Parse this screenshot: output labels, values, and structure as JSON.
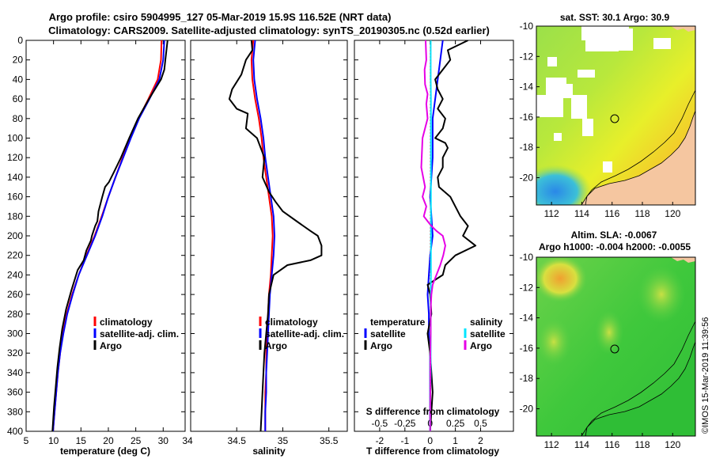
{
  "title": {
    "line1": "Argo profile: csiro 5904995_127 05-Mar-2019 15.9S 116.52E (NRT data)",
    "line2": "Climatology: CARS2009. Satellite-adjusted climatology: synTS_20190305.nc (0.52d earlier)"
  },
  "credit": "©IMOS 15-Mar-2019 11:39:56",
  "colors": {
    "climatology": "#ff0000",
    "satellite": "#0000ff",
    "argo": "#000000",
    "sal_satellite": "#00e5ff",
    "sal_argo": "#e600e6"
  },
  "chart_data": [
    {
      "id": "temperature",
      "type": "line",
      "xlabel": "temperature (deg C)",
      "ylabel": "",
      "xlim": [
        5,
        34
      ],
      "ylim": [
        400,
        0
      ],
      "xticks": [
        "5",
        "10",
        "15",
        "20",
        "25",
        "30"
      ],
      "yticks": [
        "0",
        "20",
        "40",
        "60",
        "80",
        "100",
        "120",
        "140",
        "160",
        "180",
        "200",
        "220",
        "240",
        "260",
        "280",
        "300",
        "320",
        "340",
        "360",
        "380",
        "400"
      ],
      "legend": [
        "climatology",
        "satellite-adj. clim.",
        "Argo"
      ],
      "series": [
        {
          "name": "climatology",
          "color": "#ff0000",
          "x": [
            29.7,
            29.6,
            29.0,
            27.3,
            25.5,
            24.0,
            22.6,
            21.3,
            20.0,
            18.8,
            17.5,
            16.0,
            14.6,
            13.4,
            12.4,
            11.7,
            11.2,
            10.8,
            10.5,
            10.2,
            9.9
          ],
          "y": [
            0,
            20,
            40,
            60,
            80,
            100,
            120,
            140,
            160,
            180,
            200,
            220,
            240,
            260,
            280,
            300,
            320,
            340,
            360,
            380,
            400
          ]
        },
        {
          "name": "satellite-adj. clim.",
          "color": "#0000ff",
          "x": [
            30.2,
            30.0,
            29.3,
            27.5,
            25.6,
            24.1,
            22.7,
            21.3,
            20.0,
            18.9,
            17.6,
            16.1,
            14.6,
            13.5,
            12.5,
            11.8,
            11.2,
            10.8,
            10.5,
            10.2,
            9.9
          ],
          "y": [
            0,
            20,
            40,
            60,
            80,
            100,
            120,
            140,
            160,
            180,
            200,
            220,
            240,
            260,
            280,
            300,
            320,
            340,
            360,
            380,
            400
          ]
        },
        {
          "name": "Argo",
          "color": "#000000",
          "x": [
            30.8,
            30.6,
            30.4,
            30.2,
            29.6,
            27.4,
            25.4,
            23.8,
            22.3,
            21.0,
            20.1,
            19.4,
            18.9,
            18.2,
            18.0,
            17.6,
            17.0,
            16.8,
            16.0,
            15.5,
            14.4,
            13.3,
            12.3,
            11.6,
            11.1,
            10.7,
            10.4,
            10.1,
            9.8
          ],
          "y": [
            0,
            10,
            20,
            30,
            40,
            60,
            80,
            100,
            120,
            135,
            145,
            150,
            160,
            175,
            185,
            190,
            200,
            205,
            215,
            225,
            235,
            255,
            275,
            295,
            315,
            335,
            355,
            375,
            400
          ]
        }
      ]
    },
    {
      "id": "salinity",
      "type": "line",
      "xlabel": "salinity",
      "xlim": [
        34,
        35.7
      ],
      "ylim": [
        400,
        0
      ],
      "xticks": [
        "34.5",
        "35",
        "35.5"
      ],
      "legend": [
        "climatology",
        "satellite-adj. clim.",
        "Argo"
      ],
      "series": [
        {
          "name": "climatology",
          "color": "#ff0000",
          "x": [
            34.68,
            34.66,
            34.67,
            34.7,
            34.74,
            34.77,
            34.79,
            34.82,
            34.85,
            34.88,
            34.89,
            34.88,
            34.87,
            34.85,
            34.84,
            34.83,
            34.82,
            34.82,
            34.81,
            34.81,
            34.81
          ],
          "y": [
            0,
            20,
            40,
            60,
            80,
            100,
            120,
            140,
            160,
            180,
            200,
            220,
            240,
            260,
            280,
            300,
            320,
            340,
            360,
            380,
            400
          ]
        },
        {
          "name": "satellite-adj. clim.",
          "color": "#0000ff",
          "x": [
            34.7,
            34.68,
            34.69,
            34.72,
            34.76,
            34.79,
            34.81,
            34.84,
            34.87,
            34.9,
            34.91,
            34.9,
            34.88,
            34.86,
            34.85,
            34.84,
            34.83,
            34.82,
            34.82,
            34.81,
            34.81
          ],
          "y": [
            0,
            20,
            40,
            60,
            80,
            100,
            120,
            140,
            160,
            180,
            200,
            220,
            240,
            260,
            280,
            300,
            320,
            340,
            360,
            380,
            400
          ]
        },
        {
          "name": "Argo",
          "color": "#000000",
          "x": [
            34.66,
            34.67,
            34.6,
            34.55,
            34.45,
            34.42,
            34.5,
            34.62,
            34.6,
            34.72,
            34.8,
            34.78,
            34.85,
            34.92,
            35.0,
            35.15,
            35.3,
            35.38,
            35.42,
            35.42,
            35.3,
            35.05,
            34.9,
            34.85,
            34.84,
            34.82,
            34.8,
            34.79,
            34.78,
            34.77,
            34.76
          ],
          "y": [
            0,
            10,
            20,
            35,
            50,
            60,
            70,
            75,
            90,
            100,
            120,
            140,
            155,
            165,
            175,
            185,
            195,
            200,
            210,
            220,
            225,
            230,
            240,
            260,
            280,
            300,
            320,
            340,
            360,
            380,
            400
          ]
        }
      ]
    },
    {
      "id": "differences",
      "type": "line",
      "xlabel": "T difference from climatology",
      "xlabel_top": "S difference from climatology",
      "xlim": [
        -3,
        3.3
      ],
      "ylim": [
        400,
        0
      ],
      "xticks": [
        "-2",
        "-1",
        "0",
        "1",
        "2"
      ],
      "xticks_top": [
        "-0.5",
        "-0.25",
        "0",
        "0.25",
        "0.5"
      ],
      "legend_temperature": {
        "header": "temperature",
        "items": [
          "satellite",
          "Argo"
        ]
      },
      "legend_salinity": {
        "header": "salinity",
        "items": [
          "satellite",
          "Argo"
        ]
      },
      "series": [
        {
          "name": "temperature satellite",
          "color": "#0000ff",
          "x": [
            0.5,
            0.4,
            0.3,
            0.2,
            0.1,
            0.1,
            0.1,
            0.05,
            0.0,
            0.05,
            0.1,
            0.0,
            -0.05,
            -0.1,
            -0.05,
            -0.05,
            0.0,
            0.0,
            0.0,
            0.0,
            0.0
          ],
          "y": [
            0,
            20,
            40,
            60,
            80,
            100,
            120,
            140,
            160,
            180,
            200,
            220,
            240,
            260,
            280,
            300,
            320,
            340,
            360,
            380,
            400
          ]
        },
        {
          "name": "temperature Argo",
          "color": "#000000",
          "x": [
            1.5,
            0.7,
            0.8,
            0.5,
            0.2,
            0.3,
            0.4,
            0.5,
            0.3,
            0.6,
            0.5,
            0.2,
            0.6,
            0.7,
            0.5,
            0.5,
            0.3,
            0.35,
            0.8,
            1.2,
            1.5,
            1.3,
            1.8,
            1.0,
            0.6,
            0.5,
            -0.1,
            0.0,
            0.05,
            -0.1,
            0.0,
            0.1,
            0.0
          ],
          "y": [
            0,
            10,
            20,
            30,
            40,
            50,
            55,
            60,
            70,
            80,
            90,
            100,
            105,
            110,
            120,
            130,
            140,
            150,
            160,
            180,
            190,
            200,
            210,
            220,
            230,
            240,
            250,
            260,
            280,
            300,
            320,
            360,
            400
          ]
        },
        {
          "name": "salinity satellite",
          "color": "#00e5ff",
          "x": [
            0.02,
            0.02,
            0.02,
            0.03,
            0.03,
            0.03,
            0.03,
            0.03,
            0.03,
            0.03,
            0.03,
            0.03,
            0.03,
            0.02,
            0.02,
            0.02,
            0.02,
            0.02,
            0.01,
            0.01,
            0.0
          ],
          "y": [
            0,
            20,
            40,
            60,
            80,
            100,
            120,
            140,
            160,
            180,
            200,
            220,
            240,
            260,
            280,
            300,
            320,
            340,
            360,
            380,
            400
          ]
        },
        {
          "name": "salinity Argo",
          "color": "#e600e6",
          "x": [
            -0.18,
            -0.15,
            -0.22,
            -0.2,
            -0.1,
            -0.15,
            -0.1,
            -0.3,
            -0.35,
            -0.2,
            -0.3,
            -0.15,
            -0.25,
            -0.1,
            0.05,
            0.25,
            0.5,
            0.6,
            0.52,
            0.4,
            0.25,
            0.1,
            0.05,
            0.03,
            0.02,
            0.02,
            0.01,
            0.01,
            0.0
          ],
          "y": [
            0,
            20,
            30,
            45,
            55,
            65,
            80,
            100,
            130,
            150,
            160,
            170,
            180,
            185,
            190,
            195,
            200,
            210,
            220,
            230,
            240,
            250,
            260,
            270,
            280,
            300,
            320,
            360,
            400
          ]
        }
      ]
    }
  ],
  "maps": {
    "sst": {
      "title": "sat. SST: 30.1  Argo: 30.9",
      "xticks": [
        "112",
        "114",
        "116",
        "118",
        "120"
      ],
      "yticks": [
        "-10",
        "-12",
        "-14",
        "-16",
        "-18",
        "-20"
      ],
      "float_marker": {
        "lon": 116.52,
        "lat": -15.9
      }
    },
    "sla": {
      "title1": "Altim. SLA: -0.0067",
      "title2": "Argo h1000: -0.004 h2000: -0.0055",
      "xticks": [
        "112",
        "114",
        "116",
        "118",
        "120"
      ],
      "yticks": [
        "-10",
        "-12",
        "-14",
        "-16",
        "-18",
        "-20"
      ],
      "float_marker": {
        "lon": 116.52,
        "lat": -15.9
      }
    },
    "lon_range": [
      111,
      121.5
    ],
    "lat_range": [
      -21.8,
      -10
    ]
  }
}
